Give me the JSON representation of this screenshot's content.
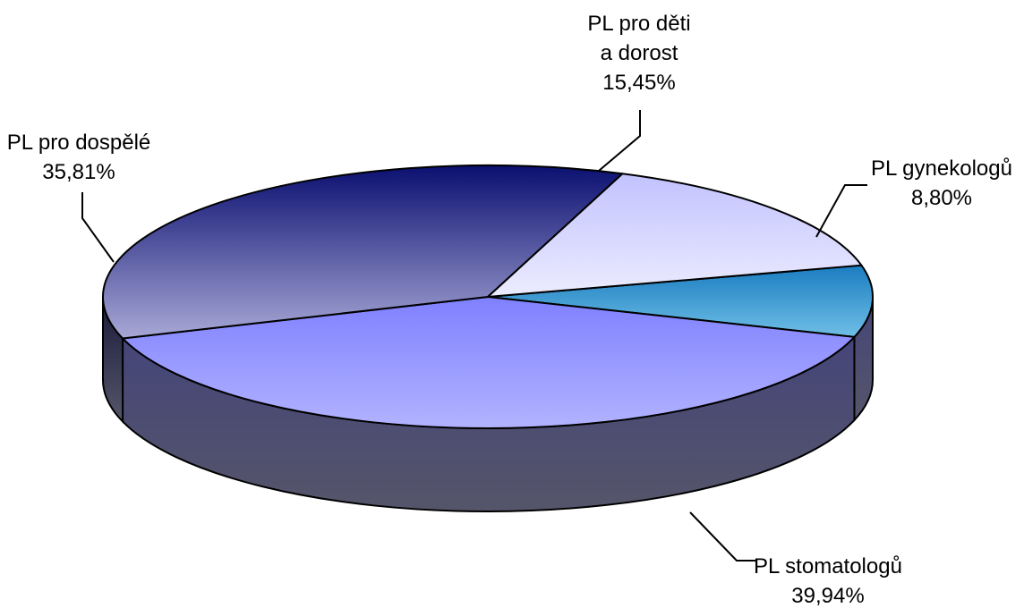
{
  "chart_data": {
    "type": "pie",
    "three_d": true,
    "title": "",
    "slices": [
      {
        "label_lines": [
          "PL gynekologů"
        ],
        "value_label": "8,80%",
        "value": 8.8,
        "color": "#1a7cc0",
        "color_light": "#6fbfe6"
      },
      {
        "label_lines": [
          "PL stomatologů"
        ],
        "value_label": "39,94%",
        "value": 39.94,
        "color": "#7f80ff",
        "color_light": "#b2b3ff"
      },
      {
        "label_lines": [
          "PL pro dospělé"
        ],
        "value_label": "35,81%",
        "value": 35.81,
        "color": "#0b0f70",
        "color_light": "#a8a8d6"
      },
      {
        "label_lines": [
          "PL pro děti",
          "a dorost"
        ],
        "value_label": "15,45%",
        "value": 15.45,
        "color": "#c2c2ff",
        "color_light": "#ececff"
      }
    ]
  }
}
